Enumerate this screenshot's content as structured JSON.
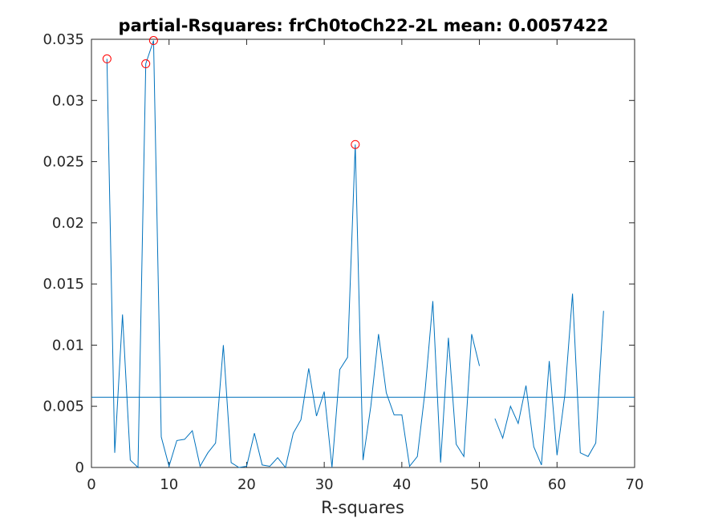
{
  "chart_data": {
    "type": "line",
    "title": "partial-Rsquares: frCh0toCh22-2L mean: 0.0057422",
    "xlabel": "R-squares",
    "ylabel": "",
    "xlim": [
      0,
      70
    ],
    "ylim": [
      0,
      0.035
    ],
    "xticks": [
      0,
      10,
      20,
      30,
      40,
      50,
      60,
      70
    ],
    "xtick_labels": [
      "0",
      "10",
      "20",
      "30",
      "40",
      "50",
      "60",
      "70"
    ],
    "yticks": [
      0,
      0.005,
      0.01,
      0.015,
      0.02,
      0.025,
      0.03,
      0.035
    ],
    "ytick_labels": [
      "0",
      "0.005",
      "0.01",
      "0.015",
      "0.02",
      "0.025",
      "0.03",
      "0.035"
    ],
    "grid": false,
    "colors": {
      "line": "#0072bd",
      "marker": "#ff0000"
    },
    "series": [
      {
        "x": [
          2,
          3,
          4,
          5,
          6,
          7,
          8,
          9,
          10,
          11,
          12,
          13,
          14,
          15,
          16,
          17,
          18,
          19,
          20,
          21,
          22,
          23,
          24,
          25,
          26,
          27,
          28,
          29,
          30,
          31,
          32,
          33,
          34,
          35,
          36,
          37,
          38,
          39,
          40,
          41,
          42,
          43,
          44,
          45,
          46,
          47,
          48,
          49,
          50,
          51,
          52,
          53,
          54,
          55,
          56,
          57,
          58,
          59,
          60,
          61,
          62,
          63,
          64,
          65,
          66
        ],
        "y": [
          0.0334,
          0.0012,
          0.0125,
          0.0006,
          0.0,
          0.033,
          0.0349,
          0.0025,
          0.0001,
          0.0022,
          0.0023,
          0.003,
          0.0001,
          0.0012,
          0.002,
          0.01,
          0.0004,
          0.0,
          0.0001,
          0.0028,
          0.0002,
          0.0001,
          0.0008,
          0.0,
          0.0028,
          0.0039,
          0.0081,
          0.0042,
          0.0062,
          0.0,
          0.008,
          0.009,
          0.0264,
          0.0006,
          0.005,
          0.0109,
          0.0061,
          0.0043,
          0.0043,
          0.0001,
          0.0009,
          0.0063,
          0.0136,
          0.0004,
          0.0106,
          0.0019,
          0.0009,
          0.0109,
          0.0083,
          null,
          0.004,
          0.0024,
          0.005,
          0.0036,
          0.0067,
          0.0017,
          0.0002,
          0.0087,
          0.001,
          0.0059,
          0.0142,
          0.0012,
          0.0009,
          0.002,
          0.0128
        ]
      }
    ],
    "mean_line": {
      "y": 0.0057422
    },
    "highlighted_points": [
      {
        "x": 2,
        "y": 0.0334
      },
      {
        "x": 7,
        "y": 0.033
      },
      {
        "x": 8,
        "y": 0.0349
      },
      {
        "x": 34,
        "y": 0.0264
      }
    ]
  }
}
